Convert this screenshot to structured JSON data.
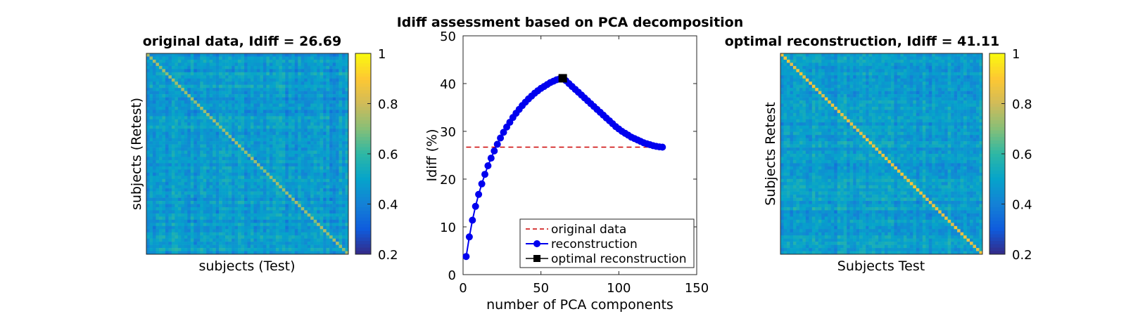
{
  "figure_title": "Idiff assessment based on PCA decomposition",
  "colors": {
    "line": "#0000ee",
    "baseline": "#cc0000",
    "optimal": "#000000",
    "parula": [
      "#352a87",
      "#0f5cdd",
      "#1481d6",
      "#06a4ca",
      "#2eb7a4",
      "#87bf77",
      "#d1bb59",
      "#fec832",
      "#f9fb0e"
    ]
  },
  "chart_data": [
    {
      "type": "heatmap",
      "title": "original data, Idiff = 26.69",
      "xlabel": "subjects (Test)",
      "ylabel": "subjects (Retest)",
      "n_subjects": 64,
      "off_diagonal_mean": 0.47,
      "diagonal_mean": 0.73,
      "color_range": [
        0.2,
        1
      ],
      "colorbar_ticks": [
        "0.2",
        "0.4",
        "0.6",
        "0.8",
        "1"
      ]
    },
    {
      "type": "line",
      "xlabel": "number of PCA components",
      "ylabel": "Idiff (%)",
      "xlim": [
        0,
        150
      ],
      "ylim": [
        0,
        50
      ],
      "xticks": [
        "0",
        "50",
        "100",
        "150"
      ],
      "yticks": [
        "0",
        "10",
        "20",
        "30",
        "40",
        "50"
      ],
      "grid": false,
      "legend_position": "bottom-right",
      "series": [
        {
          "name": "original data",
          "style": "dashed",
          "x": [
            2,
            128
          ],
          "y": [
            26.69,
            26.69
          ]
        },
        {
          "name": "reconstruction",
          "style": "line-marker",
          "x": [
            2,
            4,
            6,
            8,
            10,
            12,
            14,
            16,
            18,
            20,
            22,
            24,
            26,
            28,
            30,
            32,
            34,
            36,
            38,
            40,
            42,
            44,
            46,
            48,
            50,
            52,
            54,
            56,
            58,
            60,
            62,
            64,
            66,
            68,
            70,
            72,
            74,
            76,
            78,
            80,
            82,
            84,
            86,
            88,
            90,
            92,
            94,
            96,
            98,
            100,
            102,
            104,
            106,
            108,
            110,
            112,
            114,
            116,
            118,
            120,
            122,
            124,
            126,
            128
          ],
          "y": [
            3.8,
            7.9,
            11.4,
            14.3,
            16.8,
            19.0,
            21.0,
            22.8,
            24.4,
            25.9,
            27.3,
            28.6,
            29.8,
            30.9,
            31.9,
            32.9,
            33.8,
            34.6,
            35.4,
            36.1,
            36.8,
            37.4,
            38.0,
            38.5,
            39.0,
            39.4,
            39.8,
            40.2,
            40.5,
            40.8,
            41.0,
            41.11,
            40.6,
            40.0,
            39.4,
            38.8,
            38.2,
            37.6,
            37.0,
            36.4,
            35.8,
            35.2,
            34.6,
            34.0,
            33.4,
            32.8,
            32.2,
            31.6,
            31.0,
            30.5,
            30.0,
            29.6,
            29.2,
            28.8,
            28.5,
            28.2,
            27.9,
            27.6,
            27.4,
            27.2,
            27.0,
            26.85,
            26.75,
            26.69
          ]
        },
        {
          "name": "optimal reconstruction",
          "style": "square-marker",
          "x": [
            64
          ],
          "y": [
            41.11
          ]
        }
      ]
    },
    {
      "type": "heatmap",
      "title": "optimal reconstruction, Idiff = 41.11",
      "xlabel": "Subjects Test",
      "ylabel": "Subjects Retest",
      "n_subjects": 64,
      "off_diagonal_mean": 0.48,
      "diagonal_mean": 0.86,
      "color_range": [
        0.2,
        1
      ],
      "colorbar_ticks": [
        "0.2",
        "0.4",
        "0.6",
        "0.8",
        "1"
      ]
    }
  ]
}
